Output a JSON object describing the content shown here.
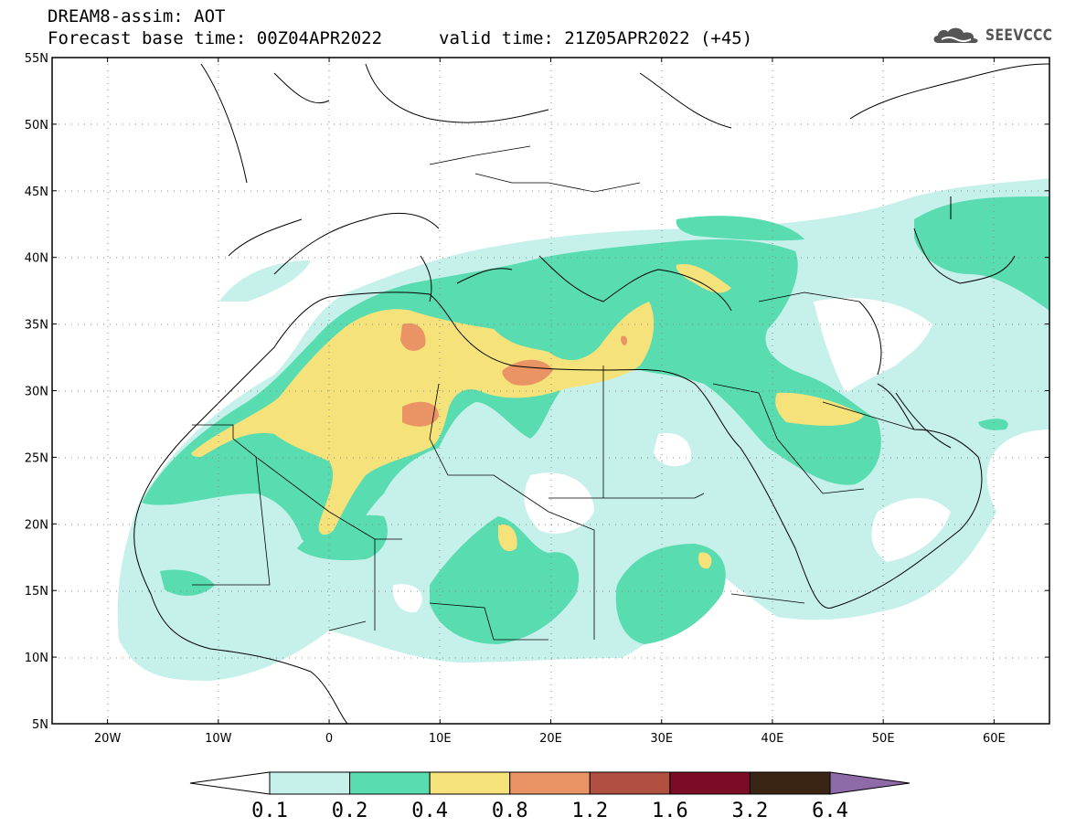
{
  "header": {
    "title": "DREAM8-assim: AOT",
    "base_time": "Forecast base time: 00Z04APR2022",
    "valid_time": "valid time: 21Z05APR2022 (+45)",
    "logo_text": "SEEVCCC"
  },
  "map": {
    "lon_range": [
      -25,
      65
    ],
    "lat_range": [
      5,
      55
    ],
    "lat_ticks": [
      "5N",
      "10N",
      "15N",
      "20N",
      "25N",
      "30N",
      "35N",
      "40N",
      "45N",
      "50N",
      "55N"
    ],
    "lon_ticks": [
      "20W",
      "10W",
      "0",
      "10E",
      "20E",
      "30E",
      "40E",
      "50E",
      "60E"
    ],
    "gridlines": "dotted"
  },
  "colorbar": {
    "levels": [
      "0.1",
      "0.2",
      "0.4",
      "0.8",
      "1.2",
      "1.6",
      "3.2",
      "6.4"
    ],
    "colors": [
      "#c6f0ea",
      "#58dcb0",
      "#f5e27a",
      "#ea9466",
      "#b05040",
      "#7a0c25",
      "#3a2515"
    ],
    "under_color": "#ffffff",
    "over_color": "#8e6aa8"
  },
  "colors": {
    "land_outline": "#000000",
    "background": "#ffffff"
  }
}
